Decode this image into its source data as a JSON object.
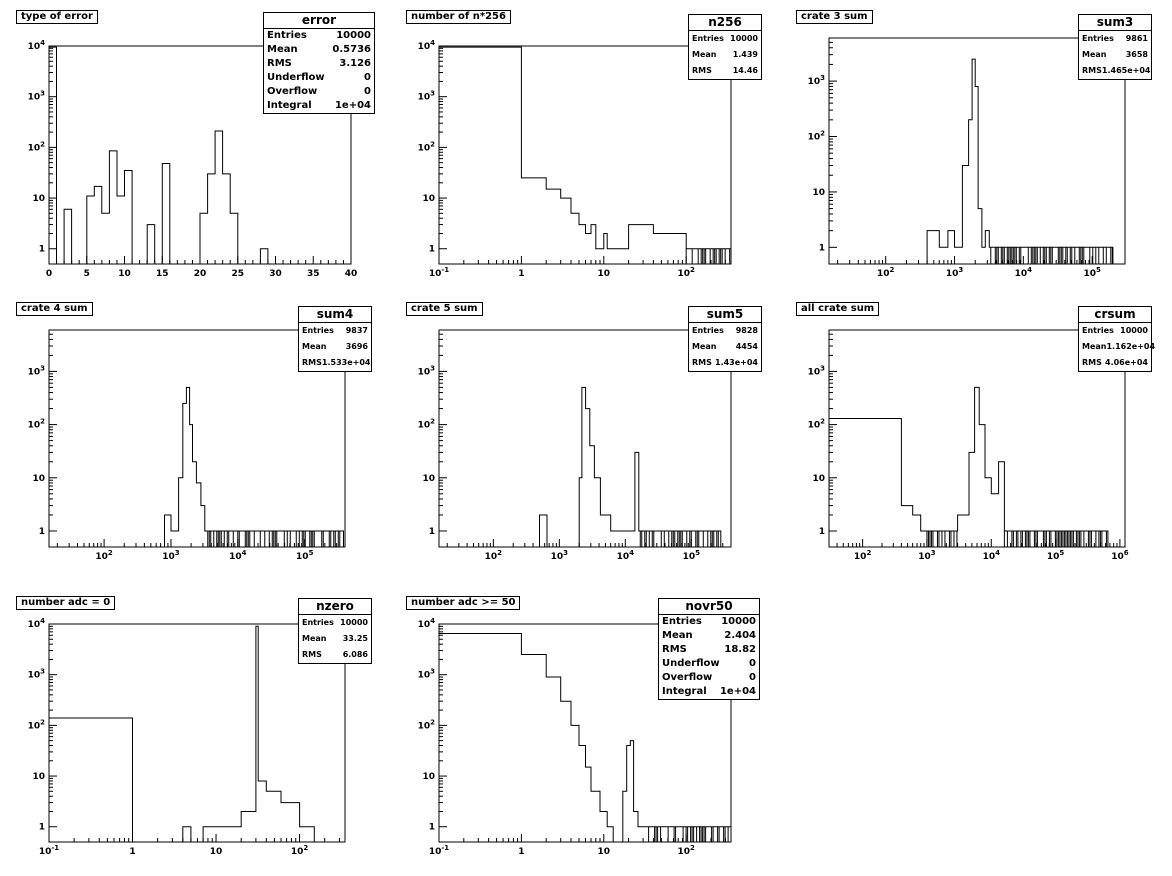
{
  "chart_data": [
    {
      "type": "bar",
      "id": "error",
      "title": "type of error",
      "xscale": "linear",
      "xlim": [
        0,
        40
      ],
      "ylim": [
        0.5,
        10000
      ],
      "yscale": "log",
      "xticks": [
        0,
        5,
        10,
        15,
        20,
        25,
        30,
        35,
        40
      ],
      "yticks": [
        "1",
        "10",
        "10^2",
        "10^3",
        "10^4"
      ],
      "bins": [
        [
          0,
          1,
          9500
        ],
        [
          1,
          2,
          0
        ],
        [
          2,
          3,
          6
        ],
        [
          3,
          5,
          0
        ],
        [
          5,
          6,
          11
        ],
        [
          6,
          7,
          17
        ],
        [
          7,
          8,
          5
        ],
        [
          8,
          9,
          85
        ],
        [
          9,
          10,
          11
        ],
        [
          10,
          11,
          35
        ],
        [
          11,
          13,
          0
        ],
        [
          13,
          14,
          3
        ],
        [
          14,
          15,
          0
        ],
        [
          15,
          16,
          48
        ],
        [
          16,
          20,
          0
        ],
        [
          20,
          21,
          5
        ],
        [
          21,
          22,
          30
        ],
        [
          22,
          23,
          210
        ],
        [
          23,
          24,
          30
        ],
        [
          24,
          25,
          5
        ],
        [
          25,
          28,
          0
        ],
        [
          28,
          29,
          1
        ]
      ],
      "stats": {
        "name": "error",
        "size": "big",
        "rows": [
          [
            "Entries",
            "10000"
          ],
          [
            "Mean",
            "0.5736"
          ],
          [
            "RMS",
            "3.126"
          ],
          [
            "Underflow",
            "0"
          ],
          [
            "Overflow",
            "0"
          ],
          [
            "Integral",
            "1e+04"
          ]
        ]
      }
    },
    {
      "type": "bar",
      "id": "n256",
      "title": "number of n*256",
      "xscale": "log",
      "xlim": [
        0.1,
        350
      ],
      "ylim": [
        0.5,
        10000
      ],
      "yscale": "log",
      "xticks": [
        "10^-1",
        "1",
        "10",
        "10^2"
      ],
      "yticks": [
        "1",
        "10",
        "10^2",
        "10^3",
        "10^4"
      ],
      "bins": [
        [
          0.1,
          1,
          9500
        ],
        [
          1,
          2,
          25
        ],
        [
          2,
          3,
          15
        ],
        [
          3,
          4,
          10
        ],
        [
          4,
          5,
          5
        ],
        [
          5,
          6,
          3
        ],
        [
          6,
          7,
          2
        ],
        [
          7,
          8,
          3
        ],
        [
          8,
          10,
          1
        ],
        [
          10,
          11,
          2
        ],
        [
          11,
          12,
          1
        ],
        [
          12,
          20,
          1
        ],
        [
          20,
          40,
          3
        ],
        [
          40,
          100,
          2
        ],
        [
          100,
          350,
          1
        ]
      ],
      "stats": {
        "name": "n256",
        "size": "small",
        "rows": [
          [
            "Entries",
            "10000"
          ],
          [
            "Mean",
            "1.439"
          ],
          [
            "RMS",
            "14.46"
          ]
        ]
      }
    },
    {
      "type": "bar",
      "id": "sum3",
      "title": "crate 3 sum",
      "xscale": "log",
      "xlim": [
        15,
        300000
      ],
      "ylim": [
        0.5,
        6000
      ],
      "yscale": "log",
      "xticks": [
        "10^2",
        "10^3",
        "10^4",
        "10^5"
      ],
      "yticks": [
        "1",
        "10",
        "10^2",
        "10^3"
      ],
      "bins": [
        [
          400,
          600,
          2
        ],
        [
          600,
          800,
          1
        ],
        [
          800,
          1000,
          2
        ],
        [
          1000,
          1300,
          1
        ],
        [
          1300,
          1600,
          30
        ],
        [
          1600,
          1800,
          200
        ],
        [
          1800,
          2000,
          2500
        ],
        [
          2000,
          2200,
          800
        ],
        [
          2200,
          2500,
          5
        ],
        [
          2500,
          2800,
          1
        ],
        [
          2800,
          3200,
          2
        ],
        [
          3200,
          200000,
          1
        ]
      ],
      "stats": {
        "name": "sum3",
        "size": "small",
        "rows": [
          [
            "Entries",
            "9861"
          ],
          [
            "Mean",
            "3658"
          ],
          [
            "RMS",
            "1.465e+04"
          ]
        ]
      }
    },
    {
      "type": "bar",
      "id": "sum4",
      "title": "crate 4 sum",
      "xscale": "log",
      "xlim": [
        15,
        400000
      ],
      "ylim": [
        0.5,
        6000
      ],
      "yscale": "log",
      "xticks": [
        "10^2",
        "10^3",
        "10^4",
        "10^5"
      ],
      "yticks": [
        "1",
        "10",
        "10^2",
        "10^3"
      ],
      "bins": [
        [
          800,
          1000,
          2
        ],
        [
          1000,
          1300,
          1
        ],
        [
          1300,
          1500,
          10
        ],
        [
          1500,
          1700,
          250
        ],
        [
          1700,
          1900,
          500
        ],
        [
          1900,
          2100,
          100
        ],
        [
          2100,
          2400,
          20
        ],
        [
          2400,
          2800,
          8
        ],
        [
          2800,
          3200,
          3
        ],
        [
          3200,
          380000,
          1
        ]
      ],
      "stats": {
        "name": "sum4",
        "size": "small",
        "rows": [
          [
            "Entries",
            "9837"
          ],
          [
            "Mean",
            "3696"
          ],
          [
            "RMS",
            "1.533e+04"
          ]
        ]
      }
    },
    {
      "type": "bar",
      "id": "sum5",
      "title": "crate 5 sum",
      "xscale": "log",
      "xlim": [
        15,
        400000
      ],
      "ylim": [
        0.5,
        6000
      ],
      "yscale": "log",
      "xticks": [
        "10^2",
        "10^3",
        "10^4",
        "10^5"
      ],
      "yticks": [
        "1",
        "10",
        "10^2",
        "10^3"
      ],
      "bins": [
        [
          500,
          650,
          2
        ],
        [
          650,
          2000,
          0
        ],
        [
          2000,
          2200,
          10
        ],
        [
          2200,
          2500,
          500
        ],
        [
          2500,
          2900,
          200
        ],
        [
          2900,
          3400,
          40
        ],
        [
          3400,
          4200,
          10
        ],
        [
          4200,
          6000,
          2
        ],
        [
          6000,
          14000,
          1
        ],
        [
          14000,
          16000,
          30
        ],
        [
          16000,
          280000,
          1
        ]
      ],
      "stats": {
        "name": "sum5",
        "size": "small",
        "rows": [
          [
            "Entries",
            "9828"
          ],
          [
            "Mean",
            "4454"
          ],
          [
            "RMS",
            "1.43e+04"
          ]
        ]
      }
    },
    {
      "type": "bar",
      "id": "crsum",
      "title": "all crate sum",
      "xscale": "log",
      "xlim": [
        30,
        1200000
      ],
      "ylim": [
        0.5,
        6000
      ],
      "yscale": "log",
      "xticks": [
        "10^2",
        "10^3",
        "10^4",
        "10^5",
        "10^6"
      ],
      "yticks": [
        "1",
        "10",
        "10^2",
        "10^3"
      ],
      "bins": [
        [
          30,
          400,
          130
        ],
        [
          400,
          600,
          3
        ],
        [
          600,
          800,
          2
        ],
        [
          800,
          1000,
          1
        ],
        [
          1000,
          3000,
          1
        ],
        [
          3000,
          4500,
          2
        ],
        [
          4500,
          5500,
          30
        ],
        [
          5500,
          6500,
          500
        ],
        [
          6500,
          8000,
          100
        ],
        [
          8000,
          10000,
          10
        ],
        [
          10000,
          13000,
          5
        ],
        [
          13000,
          16000,
          20
        ],
        [
          16000,
          650000,
          1
        ]
      ],
      "stats": {
        "name": "crsum",
        "size": "small",
        "rows": [
          [
            "Entries",
            "10000"
          ],
          [
            "Mean",
            "1.162e+04"
          ],
          [
            "RMS",
            "4.06e+04"
          ]
        ]
      }
    },
    {
      "type": "bar",
      "id": "nzero",
      "title": "number adc = 0",
      "xscale": "log",
      "xlim": [
        0.1,
        350
      ],
      "ylim": [
        0.5,
        10000
      ],
      "yscale": "log",
      "xticks": [
        "10^-1",
        "1",
        "10",
        "10^2"
      ],
      "yticks": [
        "1",
        "10",
        "10^2",
        "10^3",
        "10^4"
      ],
      "bins": [
        [
          0.1,
          1,
          140
        ],
        [
          1,
          4,
          0
        ],
        [
          4,
          5,
          1
        ],
        [
          5,
          7,
          0
        ],
        [
          7,
          10,
          1
        ],
        [
          10,
          20,
          1
        ],
        [
          20,
          30,
          2
        ],
        [
          30,
          32,
          9000
        ],
        [
          32,
          40,
          8
        ],
        [
          40,
          60,
          5
        ],
        [
          60,
          100,
          3
        ],
        [
          100,
          150,
          1
        ]
      ],
      "stats": {
        "name": "nzero",
        "size": "small",
        "rows": [
          [
            "Entries",
            "10000"
          ],
          [
            "Mean",
            "33.25"
          ],
          [
            "RMS",
            "6.086"
          ]
        ]
      }
    },
    {
      "type": "bar",
      "id": "novr50",
      "title": "number adc >= 50",
      "xscale": "log",
      "xlim": [
        0.1,
        350
      ],
      "ylim": [
        0.5,
        10000
      ],
      "yscale": "log",
      "xticks": [
        "10^-1",
        "1",
        "10",
        "10^2"
      ],
      "yticks": [
        "1",
        "10",
        "10^2",
        "10^3",
        "10^4"
      ],
      "bins": [
        [
          0.1,
          1,
          6500
        ],
        [
          1,
          2,
          2500
        ],
        [
          2,
          3,
          900
        ],
        [
          3,
          4,
          300
        ],
        [
          4,
          5,
          100
        ],
        [
          5,
          6,
          40
        ],
        [
          6,
          7,
          15
        ],
        [
          7,
          9,
          5
        ],
        [
          9,
          11,
          2
        ],
        [
          11,
          13,
          1
        ],
        [
          13,
          17,
          0
        ],
        [
          17,
          19,
          5
        ],
        [
          19,
          21,
          40
        ],
        [
          21,
          23,
          50
        ],
        [
          23,
          26,
          2
        ],
        [
          26,
          35,
          1
        ],
        [
          35,
          350,
          1
        ]
      ],
      "stats": {
        "name": "novr50",
        "size": "big",
        "rows": [
          [
            "Entries",
            "10000"
          ],
          [
            "Mean",
            "2.404"
          ],
          [
            "RMS",
            "18.82"
          ],
          [
            "Underflow",
            "0"
          ],
          [
            "Overflow",
            "0"
          ],
          [
            "Integral",
            "1e+04"
          ]
        ]
      }
    }
  ]
}
